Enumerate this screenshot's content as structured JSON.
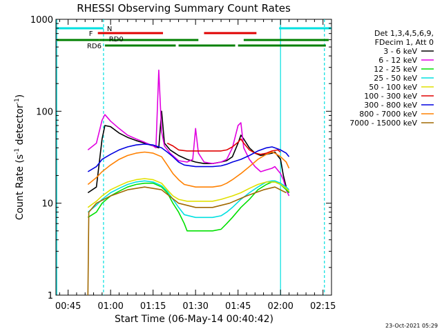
{
  "chart_data": {
    "type": "line",
    "title": "RHESSI Observing Summary Count Rates",
    "xlabel": "Start Time (06-May-14 00:40:42)",
    "ylabel": "Count Rate (s⁻¹ detector⁻¹)",
    "ylabel_parts": [
      "Count Rate (s",
      "-1",
      " detector",
      "-1",
      ")"
    ],
    "y_scale": "log",
    "ylim": [
      1,
      1000
    ],
    "xlim_minutes": [
      40.7,
      138
    ],
    "x_ticks": [
      {
        "m": 45,
        "label": "00:45"
      },
      {
        "m": 60,
        "label": "01:00"
      },
      {
        "m": 75,
        "label": "01:15"
      },
      {
        "m": 90,
        "label": "01:30"
      },
      {
        "m": 105,
        "label": "01:45"
      },
      {
        "m": 120,
        "label": "02:00"
      },
      {
        "m": 135,
        "label": "02:15"
      }
    ],
    "y_ticks": [
      {
        "v": 1,
        "label": "1"
      },
      {
        "v": 10,
        "label": "10"
      },
      {
        "v": 100,
        "label": "100"
      },
      {
        "v": 1000,
        "label": "1000"
      }
    ],
    "legend_header": [
      "Det 1,3,4,5,6,9,",
      "FDecim 1, Att 0"
    ],
    "legend_position": "right",
    "series": [
      {
        "name": "3 - 6 keV",
        "color": "#000000",
        "points": [
          [
            52,
            13
          ],
          [
            55,
            15
          ],
          [
            57,
            50
          ],
          [
            58,
            70
          ],
          [
            60,
            68
          ],
          [
            63,
            58
          ],
          [
            66,
            52
          ],
          [
            69,
            48
          ],
          [
            72,
            45
          ],
          [
            75,
            42
          ],
          [
            77,
            40
          ],
          [
            78,
            100
          ],
          [
            79,
            45
          ],
          [
            81,
            38
          ],
          [
            84,
            33
          ],
          [
            87,
            30
          ],
          [
            90,
            28
          ],
          [
            93,
            27
          ],
          [
            96,
            27
          ],
          [
            99,
            28
          ],
          [
            101,
            29
          ],
          [
            103,
            32
          ],
          [
            105,
            45
          ],
          [
            106,
            55
          ],
          [
            107,
            50
          ],
          [
            109,
            40
          ],
          [
            111,
            35
          ],
          [
            113,
            33
          ],
          [
            115,
            34
          ],
          [
            117,
            35
          ],
          [
            118,
            36
          ],
          [
            120,
            30
          ],
          [
            121,
            20
          ],
          [
            122,
            15
          ],
          [
            123,
            13
          ]
        ]
      },
      {
        "name": "6 - 12 keV",
        "color": "#e000e0",
        "points": [
          [
            52,
            38
          ],
          [
            55,
            45
          ],
          [
            57,
            80
          ],
          [
            58,
            92
          ],
          [
            60,
            78
          ],
          [
            63,
            65
          ],
          [
            66,
            55
          ],
          [
            69,
            50
          ],
          [
            72,
            46
          ],
          [
            75,
            42
          ],
          [
            76,
            40
          ],
          [
            77,
            280
          ],
          [
            78,
            60
          ],
          [
            79,
            42
          ],
          [
            81,
            35
          ],
          [
            84,
            29
          ],
          [
            87,
            28
          ],
          [
            89,
            30
          ],
          [
            90,
            65
          ],
          [
            91,
            35
          ],
          [
            93,
            28
          ],
          [
            96,
            27
          ],
          [
            99,
            28
          ],
          [
            101,
            30
          ],
          [
            103,
            40
          ],
          [
            105,
            70
          ],
          [
            106,
            75
          ],
          [
            107,
            40
          ],
          [
            109,
            30
          ],
          [
            111,
            25
          ],
          [
            113,
            22
          ],
          [
            115,
            23
          ],
          [
            117,
            24
          ],
          [
            118,
            25
          ],
          [
            120,
            21
          ],
          [
            121,
            18
          ],
          [
            122,
            14
          ],
          [
            123,
            12
          ]
        ]
      },
      {
        "name": "12 - 25 keV",
        "color": "#00e000",
        "points": [
          [
            52,
            7
          ],
          [
            55,
            8
          ],
          [
            57,
            10
          ],
          [
            60,
            12
          ],
          [
            63,
            13.5
          ],
          [
            66,
            15
          ],
          [
            69,
            16
          ],
          [
            72,
            16.5
          ],
          [
            75,
            16.5
          ],
          [
            78,
            15
          ],
          [
            80,
            13
          ],
          [
            82,
            10
          ],
          [
            84,
            8
          ],
          [
            86,
            6
          ],
          [
            87,
            5
          ],
          [
            90,
            5
          ],
          [
            93,
            5
          ],
          [
            96,
            5
          ],
          [
            99,
            5.2
          ],
          [
            101,
            6
          ],
          [
            103,
            7
          ],
          [
            106,
            9
          ],
          [
            109,
            11
          ],
          [
            112,
            14
          ],
          [
            115,
            16
          ],
          [
            117,
            17
          ],
          [
            118,
            17
          ],
          [
            120,
            16
          ],
          [
            122,
            14
          ],
          [
            123,
            13
          ]
        ]
      },
      {
        "name": "25 - 50 keV",
        "color": "#00e0e0",
        "points": [
          [
            52,
            8
          ],
          [
            55,
            9.5
          ],
          [
            57,
            11
          ],
          [
            60,
            13
          ],
          [
            63,
            14.5
          ],
          [
            66,
            16
          ],
          [
            69,
            17
          ],
          [
            72,
            17.5
          ],
          [
            75,
            17
          ],
          [
            78,
            15.5
          ],
          [
            80,
            13.5
          ],
          [
            82,
            11
          ],
          [
            84,
            9
          ],
          [
            86,
            7.5
          ],
          [
            90,
            7
          ],
          [
            93,
            7
          ],
          [
            96,
            7
          ],
          [
            99,
            7.3
          ],
          [
            101,
            8
          ],
          [
            103,
            9
          ],
          [
            106,
            11
          ],
          [
            109,
            13
          ],
          [
            112,
            15
          ],
          [
            115,
            17
          ],
          [
            117,
            17.5
          ],
          [
            118,
            17.5
          ],
          [
            120,
            16.5
          ],
          [
            122,
            15
          ],
          [
            123,
            14
          ]
        ]
      },
      {
        "name": "50 - 100 keV",
        "color": "#e0e000",
        "points": [
          [
            52,
            9
          ],
          [
            55,
            10.5
          ],
          [
            57,
            12
          ],
          [
            60,
            14
          ],
          [
            63,
            15.5
          ],
          [
            66,
            17
          ],
          [
            69,
            18
          ],
          [
            72,
            18.5
          ],
          [
            75,
            18
          ],
          [
            78,
            16.5
          ],
          [
            80,
            14
          ],
          [
            82,
            12
          ],
          [
            84,
            11
          ],
          [
            87,
            10.5
          ],
          [
            90,
            10.5
          ],
          [
            93,
            10.5
          ],
          [
            96,
            10.5
          ],
          [
            99,
            11
          ],
          [
            101,
            11.5
          ],
          [
            103,
            12
          ],
          [
            106,
            13
          ],
          [
            109,
            14.5
          ],
          [
            112,
            16
          ],
          [
            115,
            17
          ],
          [
            117,
            17
          ],
          [
            118,
            17
          ],
          [
            120,
            16
          ],
          [
            122,
            14.5
          ],
          [
            123,
            13.5
          ]
        ]
      },
      {
        "name": "100 - 300 keV",
        "color": "#e00000",
        "points": [
          [
            80,
            45
          ],
          [
            82,
            42
          ],
          [
            84,
            38
          ],
          [
            87,
            37
          ],
          [
            90,
            37
          ],
          [
            93,
            37
          ],
          [
            96,
            37
          ],
          [
            99,
            37
          ],
          [
            101,
            38
          ],
          [
            103,
            41
          ],
          [
            105,
            46
          ],
          [
            106,
            50
          ],
          [
            107,
            45
          ],
          [
            109,
            38
          ],
          [
            111,
            35
          ],
          [
            113,
            34
          ],
          [
            115,
            35
          ],
          [
            117,
            37
          ],
          [
            119,
            38
          ],
          [
            120,
            36
          ]
        ]
      },
      {
        "name": "300 - 800 keV",
        "color": "#0000e0",
        "points": [
          [
            52,
            22
          ],
          [
            55,
            25
          ],
          [
            57,
            30
          ],
          [
            60,
            34
          ],
          [
            63,
            38
          ],
          [
            66,
            41
          ],
          [
            69,
            43
          ],
          [
            72,
            44
          ],
          [
            75,
            43
          ],
          [
            78,
            40
          ],
          [
            80,
            36
          ],
          [
            82,
            32
          ],
          [
            84,
            28
          ],
          [
            86,
            26
          ],
          [
            90,
            25
          ],
          [
            93,
            25
          ],
          [
            96,
            25
          ],
          [
            99,
            25.5
          ],
          [
            101,
            26.5
          ],
          [
            103,
            28
          ],
          [
            106,
            30
          ],
          [
            109,
            33
          ],
          [
            112,
            37
          ],
          [
            115,
            40
          ],
          [
            117,
            41
          ],
          [
            118,
            40
          ],
          [
            120,
            38
          ],
          [
            122,
            35
          ],
          [
            123,
            32
          ]
        ]
      },
      {
        "name": "800 - 7000 keV",
        "color": "#ff8000",
        "points": [
          [
            52,
            16
          ],
          [
            55,
            19
          ],
          [
            57,
            22
          ],
          [
            60,
            26
          ],
          [
            63,
            30
          ],
          [
            66,
            33
          ],
          [
            69,
            35
          ],
          [
            72,
            36
          ],
          [
            75,
            35
          ],
          [
            78,
            32
          ],
          [
            80,
            26
          ],
          [
            82,
            21
          ],
          [
            84,
            18
          ],
          [
            86,
            16
          ],
          [
            90,
            15
          ],
          [
            93,
            15
          ],
          [
            96,
            15
          ],
          [
            99,
            15.5
          ],
          [
            101,
            16.5
          ],
          [
            103,
            18
          ],
          [
            106,
            21
          ],
          [
            109,
            25
          ],
          [
            112,
            30
          ],
          [
            115,
            34
          ],
          [
            117,
            36
          ],
          [
            118,
            35
          ],
          [
            120,
            32
          ],
          [
            122,
            28
          ],
          [
            123,
            24
          ]
        ]
      },
      {
        "name": "7000 - 15000 keV",
        "color": "#a06800",
        "points": [
          [
            52,
            1
          ],
          [
            52.3,
            8
          ],
          [
            55,
            10
          ],
          [
            60,
            12
          ],
          [
            66,
            14
          ],
          [
            72,
            15
          ],
          [
            78,
            14
          ],
          [
            84,
            10
          ],
          [
            90,
            9
          ],
          [
            96,
            9
          ],
          [
            102,
            10
          ],
          [
            108,
            12
          ],
          [
            114,
            14
          ],
          [
            118,
            15
          ],
          [
            122,
            13
          ]
        ]
      }
    ],
    "flags": {
      "attenuator_labels": [
        "F",
        "RD0",
        "RD6",
        "N"
      ],
      "red_F": [
        [
          55.5,
          78.5
        ],
        [
          93,
          111.5
        ]
      ],
      "green_RD0": [
        [
          41,
          56
        ],
        [
          56,
          91
        ],
        [
          107,
          137
        ]
      ],
      "green_RD6": [
        [
          58,
          83
        ],
        [
          84,
          104
        ],
        [
          105,
          136
        ]
      ],
      "cyan_night": [
        [
          41,
          57.5
        ],
        [
          119.5,
          138
        ]
      ],
      "cyan_vlines_solid": [
        41,
        120
      ],
      "cyan_vlines_dashed": [
        57.5,
        135.5
      ]
    }
  },
  "timestamp": "23-Oct-2021 05:29"
}
